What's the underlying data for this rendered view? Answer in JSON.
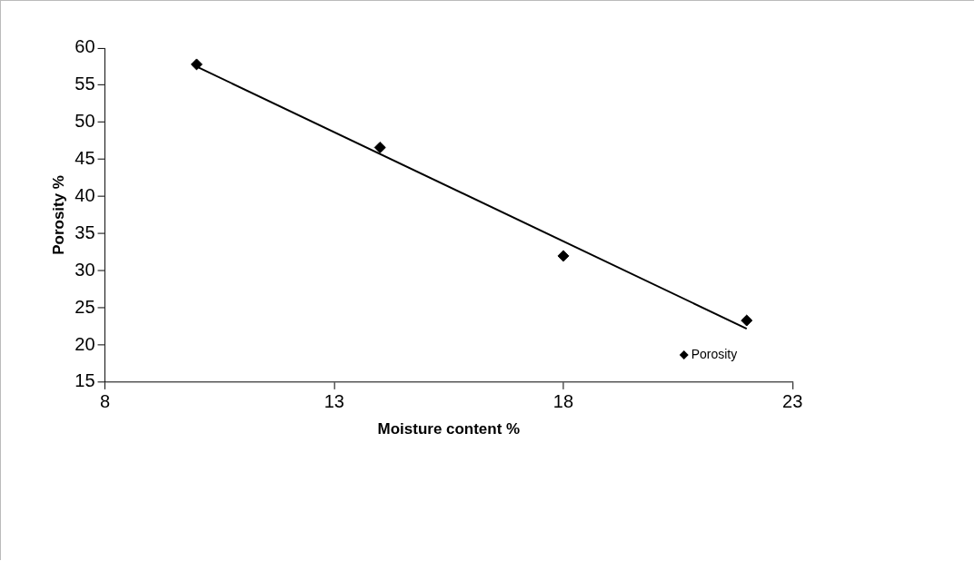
{
  "chart_data": {
    "type": "scatter",
    "xlabel": "Moisture content %",
    "ylabel": "Porosity %",
    "xlim": [
      8,
      23
    ],
    "xticks": [
      8,
      13,
      18,
      23
    ],
    "ylim": [
      15,
      60
    ],
    "yticks": [
      15,
      20,
      25,
      30,
      35,
      40,
      45,
      50,
      55,
      60
    ],
    "grid": false,
    "legend": "bottom right",
    "series": [
      {
        "name": "Porosity",
        "color": "#000000",
        "marker": "diamond",
        "x": [
          10,
          14,
          18,
          22
        ],
        "values": [
          57.8,
          46.6,
          32,
          23.3
        ]
      },
      {
        "type": "line",
        "color": "#000000",
        "x": [
          10,
          22
        ],
        "values": [
          57.5,
          22.2
        ],
        "line_style": "solid",
        "marker": "none"
      }
    ]
  }
}
